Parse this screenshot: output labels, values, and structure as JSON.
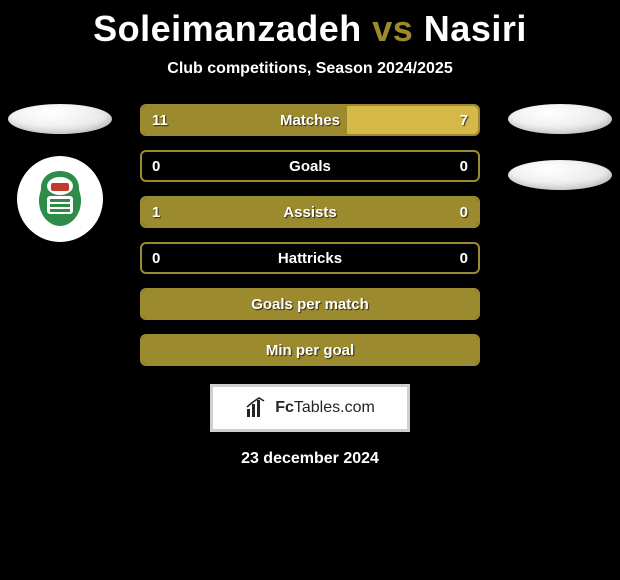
{
  "title": {
    "player1": "Soleimanzadeh",
    "vs": "vs",
    "player2": "Nasiri"
  },
  "subtitle": "Club competitions, Season 2024/2025",
  "colors": {
    "background": "#000000",
    "border": "#9c8b2e",
    "fill_left": "#9c8b2e",
    "fill_right": "#d5b847",
    "text": "#ffffff"
  },
  "bars": [
    {
      "label": "Matches",
      "left_val": "11",
      "right_val": "7",
      "left_num": 11,
      "right_num": 7
    },
    {
      "label": "Goals",
      "left_val": "0",
      "right_val": "0",
      "left_num": 0,
      "right_num": 0
    },
    {
      "label": "Assists",
      "left_val": "1",
      "right_val": "0",
      "left_num": 1,
      "right_num": 0
    },
    {
      "label": "Hattricks",
      "left_val": "0",
      "right_val": "0",
      "left_num": 0,
      "right_num": 0
    },
    {
      "label": "Goals per match",
      "left_val": "",
      "right_val": "",
      "left_num": 0,
      "right_num": 0,
      "full": true
    },
    {
      "label": "Min per goal",
      "left_val": "",
      "right_val": "",
      "left_num": 0,
      "right_num": 0,
      "full": true
    }
  ],
  "logo": {
    "bold": "Fc",
    "rest": "Tables.com"
  },
  "date": "23 december 2024",
  "club": {
    "primary": "#2e8b4a",
    "accent_red": "#c23a2e"
  }
}
